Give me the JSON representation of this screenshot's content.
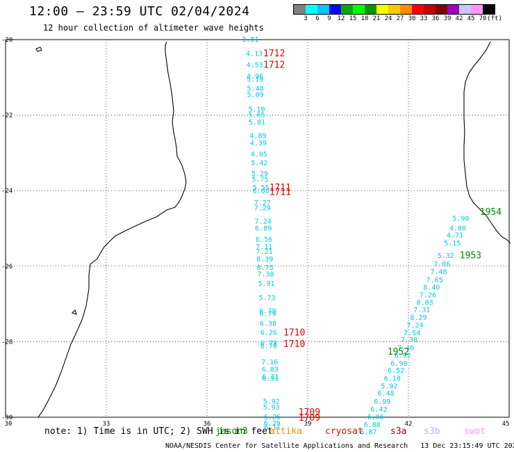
{
  "header": {
    "title": "12:00 – 23:59 UTC 02/04/2024",
    "subtitle": "12 hour collection of altimeter wave heights"
  },
  "legend": {
    "colors": [
      "#808080",
      "#00ffff",
      "#00c8ff",
      "#0000ff",
      "#00aa00",
      "#00ff00",
      "#009600",
      "#ffff00",
      "#ffc800",
      "#ff8c00",
      "#ff0000",
      "#c80000",
      "#800000",
      "#a000c0",
      "#c8c8ff",
      "#ff96ff",
      "#000000"
    ],
    "labels": [
      "3",
      "6",
      "9",
      "12",
      "15",
      "18",
      "21",
      "24",
      "27",
      "30",
      "33",
      "36",
      "39",
      "42",
      "45",
      "70",
      "(ft)"
    ]
  },
  "axes": {
    "lon_ticks": [
      "30",
      "33",
      "36",
      "39",
      "42",
      "45"
    ],
    "lat_ticks": [
      "-20",
      "-22",
      "-24",
      "-26",
      "-28",
      "-30"
    ]
  },
  "tracks": [
    {
      "color": "#00c8e0",
      "points": [
        {
          "lon": 37.29,
          "lat": -19.98,
          "v": "3.81"
        },
        {
          "lon": 37.41,
          "lat": -20.36,
          "v": "4.13"
        },
        {
          "lon": 37.42,
          "lat": -20.65,
          "v": "4.53"
        },
        {
          "lon": 37.43,
          "lat": -20.96,
          "v": "4.96"
        },
        {
          "lon": 37.43,
          "lat": -21.04,
          "v": "5.19"
        },
        {
          "lon": 37.44,
          "lat": -21.28,
          "v": "5.48"
        },
        {
          "lon": 37.44,
          "lat": -21.45,
          "v": "5.09"
        },
        {
          "lon": 37.48,
          "lat": -21.83,
          "v": "5.10"
        },
        {
          "lon": 37.48,
          "lat": -21.98,
          "v": "5.65"
        },
        {
          "lon": 37.49,
          "lat": -22.17,
          "v": "5.81"
        },
        {
          "lon": 37.52,
          "lat": -22.53,
          "v": "4.89"
        },
        {
          "lon": 37.53,
          "lat": -22.73,
          "v": "4.39"
        },
        {
          "lon": 37.55,
          "lat": -23.02,
          "v": "4.05"
        },
        {
          "lon": 37.56,
          "lat": -23.25,
          "v": "5.42"
        },
        {
          "lon": 37.57,
          "lat": -23.54,
          "v": "5.29"
        },
        {
          "lon": 37.58,
          "lat": -23.68,
          "v": "5.75"
        },
        {
          "lon": 37.61,
          "lat": -23.9,
          "v": "5.55"
        },
        {
          "lon": 37.61,
          "lat": -24.0,
          "v": "6.00"
        },
        {
          "lon": 37.65,
          "lat": -24.31,
          "v": "7.27"
        },
        {
          "lon": 37.65,
          "lat": -24.45,
          "v": "7.29"
        },
        {
          "lon": 37.67,
          "lat": -24.8,
          "v": "7.24"
        },
        {
          "lon": 37.68,
          "lat": -24.98,
          "v": "6.89"
        },
        {
          "lon": 37.7,
          "lat": -25.28,
          "v": "6.56"
        },
        {
          "lon": 37.7,
          "lat": -25.47,
          "v": "7.11"
        },
        {
          "lon": 37.71,
          "lat": -25.6,
          "v": "7.21"
        },
        {
          "lon": 37.72,
          "lat": -25.8,
          "v": "8.39"
        },
        {
          "lon": 37.73,
          "lat": -26.02,
          "v": "8.75"
        },
        {
          "lon": 37.75,
          "lat": -26.2,
          "v": "7.38"
        },
        {
          "lon": 37.77,
          "lat": -26.45,
          "v": "5.91"
        },
        {
          "lon": 37.79,
          "lat": -26.82,
          "v": "5.73"
        },
        {
          "lon": 37.81,
          "lat": -27.17,
          "v": "6.79"
        },
        {
          "lon": 37.81,
          "lat": -27.25,
          "v": "6.79"
        },
        {
          "lon": 37.82,
          "lat": -27.5,
          "v": "6.38"
        },
        {
          "lon": 37.84,
          "lat": -27.74,
          "v": "6.26"
        },
        {
          "lon": 37.84,
          "lat": -28.02,
          "v": "6.79"
        },
        {
          "lon": 37.84,
          "lat": -28.1,
          "v": "6.70"
        },
        {
          "lon": 37.87,
          "lat": -28.53,
          "v": "7.16"
        },
        {
          "lon": 37.88,
          "lat": -28.72,
          "v": "6.83"
        },
        {
          "lon": 37.89,
          "lat": -28.91,
          "v": "6.31"
        },
        {
          "lon": 37.89,
          "lat": -28.96,
          "v": "6.51"
        },
        {
          "lon": 37.92,
          "lat": -29.57,
          "v": "5.92"
        },
        {
          "lon": 37.92,
          "lat": -29.72,
          "v": "5.93"
        },
        {
          "lon": 37.94,
          "lat": -29.98,
          "v": "6.26"
        },
        {
          "lon": 37.94,
          "lat": -30.15,
          "v": "6.29"
        },
        {
          "lon": 37.95,
          "lat": -30.25,
          "v": "6.11"
        }
      ]
    },
    {
      "color": "#00c8e0",
      "points": [
        {
          "lon": 43.56,
          "lat": -24.72,
          "v": "5.90"
        },
        {
          "lon": 43.47,
          "lat": -24.98,
          "v": "4.80"
        },
        {
          "lon": 43.39,
          "lat": -25.17,
          "v": "4.71"
        },
        {
          "lon": 43.31,
          "lat": -25.38,
          "v": "5.15"
        },
        {
          "lon": 43.11,
          "lat": -25.71,
          "v": "5.32"
        },
        {
          "lon": 43.0,
          "lat": -25.93,
          "v": "7.06"
        },
        {
          "lon": 42.9,
          "lat": -26.13,
          "v": "7.48"
        },
        {
          "lon": 42.78,
          "lat": -26.35,
          "v": "7.65"
        },
        {
          "lon": 42.69,
          "lat": -26.55,
          "v": "8.40"
        },
        {
          "lon": 42.58,
          "lat": -26.75,
          "v": "7.26"
        },
        {
          "lon": 42.49,
          "lat": -26.95,
          "v": "8.03"
        },
        {
          "lon": 42.4,
          "lat": -27.15,
          "v": "7.31"
        },
        {
          "lon": 42.3,
          "lat": -27.35,
          "v": "8.29"
        },
        {
          "lon": 42.2,
          "lat": -27.55,
          "v": "7.24"
        },
        {
          "lon": 42.11,
          "lat": -27.75,
          "v": "7.54"
        },
        {
          "lon": 42.02,
          "lat": -27.94,
          "v": "7.38"
        },
        {
          "lon": 41.92,
          "lat": -28.15,
          "v": "7.46"
        },
        {
          "lon": 41.83,
          "lat": -28.35,
          "v": "6.92"
        },
        {
          "lon": 41.72,
          "lat": -28.56,
          "v": "6.90"
        },
        {
          "lon": 41.63,
          "lat": -28.75,
          "v": "6.52"
        },
        {
          "lon": 41.52,
          "lat": -28.96,
          "v": "6.10"
        },
        {
          "lon": 41.43,
          "lat": -29.16,
          "v": "5.92"
        },
        {
          "lon": 41.33,
          "lat": -29.36,
          "v": "6.48"
        },
        {
          "lon": 41.22,
          "lat": -29.58,
          "v": "6.99"
        },
        {
          "lon": 41.12,
          "lat": -29.78,
          "v": "6.42"
        },
        {
          "lon": 41.02,
          "lat": -29.98,
          "v": "6.06"
        },
        {
          "lon": 40.92,
          "lat": -30.18,
          "v": "6.88"
        },
        {
          "lon": 40.81,
          "lat": -30.38,
          "v": "6.87"
        }
      ]
    }
  ],
  "time_labels": [
    {
      "lon": 38.0,
      "lat": -20.35,
      "t": "1712",
      "color": "#e00000"
    },
    {
      "lon": 38.0,
      "lat": -20.65,
      "t": "1712",
      "color": "#e00000"
    },
    {
      "lon": 38.18,
      "lat": -23.9,
      "t": "1711",
      "color": "#e00000"
    },
    {
      "lon": 38.18,
      "lat": -24.02,
      "t": "1711",
      "color": "#e00000"
    },
    {
      "lon": 38.6,
      "lat": -27.74,
      "t": "1710",
      "color": "#e00000"
    },
    {
      "lon": 38.6,
      "lat": -28.05,
      "t": "1710",
      "color": "#e00000"
    },
    {
      "lon": 39.05,
      "lat": -29.85,
      "t": "1709",
      "color": "#e00000"
    },
    {
      "lon": 39.05,
      "lat": -30.0,
      "t": "1709",
      "color": "#e00000"
    },
    {
      "lon": 44.45,
      "lat": -24.55,
      "t": "1954",
      "color": "#008800"
    },
    {
      "lon": 43.85,
      "lat": -25.7,
      "t": "1953",
      "color": "#008800"
    },
    {
      "lon": 41.7,
      "lat": -28.25,
      "t": "1952",
      "color": "#008800"
    }
  ],
  "note": "note: 1) Time is in UTC; 2) SWH is in feet",
  "satellites": [
    {
      "name": "jason3",
      "color": "#008800"
    },
    {
      "name": "altika",
      "color": "#ff8c00"
    },
    {
      "name": "cryosat",
      "color": "#ff0000"
    },
    {
      "name": "s3a",
      "color": "#a00000"
    },
    {
      "name": "s3b",
      "color": "#b4b4ff"
    },
    {
      "name": "swot",
      "color": "#ff96ff"
    }
  ],
  "footer": "NOAA/NESDIS Center for Satellite Applications and Research   13 Dec 23:15:49 UTC 2024"
}
